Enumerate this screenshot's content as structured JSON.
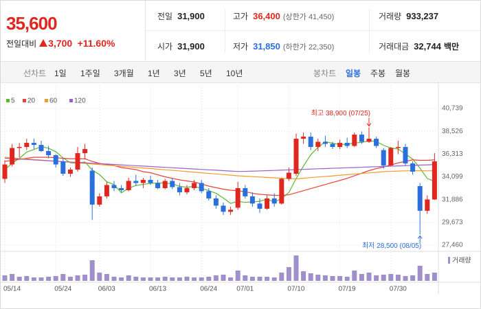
{
  "header": {
    "price": "35,600",
    "change_label": "전일대비",
    "change": "3,700",
    "change_pct": "+11.60%",
    "stats": [
      {
        "label": "전일",
        "value": "31,900"
      },
      {
        "label": "고가",
        "value": "36,400",
        "extra": "(상한가 41,450)",
        "color": "#e0271f"
      },
      {
        "label": "거래량",
        "value": "933,237"
      },
      {
        "label": "시가",
        "value": "31,900"
      },
      {
        "label": "저가",
        "value": "31,850",
        "extra": "(하한가 22,350)",
        "color": "#2a6fdb"
      },
      {
        "label": "거래대금",
        "value": "32,744",
        "unit": "백만"
      }
    ]
  },
  "toolbar": {
    "line_label": "선차트",
    "line_tabs": [
      "1일",
      "1주일",
      "3개월",
      "1년",
      "3년",
      "5년",
      "10년"
    ],
    "candle_label": "봉차트",
    "candle_tabs": [
      "일봉",
      "주봉",
      "월봉"
    ],
    "candle_active": 0
  },
  "chart_data": {
    "type": "candlestick",
    "up_color": "#e0271f",
    "down_color": "#2a6fdb",
    "volume_color": "#9f8fcb",
    "grid": true,
    "categories": [
      "05/14",
      null,
      null,
      null,
      null,
      null,
      null,
      "05/24",
      null,
      null,
      null,
      null,
      null,
      "06/03",
      null,
      null,
      null,
      null,
      null,
      null,
      "06/13",
      null,
      null,
      null,
      null,
      null,
      null,
      "06/24",
      null,
      null,
      null,
      null,
      "07/01",
      null,
      null,
      null,
      null,
      null,
      null,
      "07/10",
      null,
      null,
      null,
      null,
      null,
      null,
      "07/19",
      null,
      null,
      null,
      null,
      null,
      null,
      "07/30",
      null,
      null,
      null,
      null,
      null,
      null
    ],
    "open": [
      33900,
      35300,
      36900,
      37000,
      37400,
      37200,
      36600,
      36200,
      35600,
      34400,
      34800,
      36400,
      34700,
      31400,
      32200,
      33300,
      33000,
      32800,
      33700,
      33500,
      33800,
      33500,
      33000,
      33700,
      33100,
      32600,
      33000,
      33500,
      32700,
      32000,
      31300,
      30700,
      31100,
      33000,
      32200,
      31500,
      31000,
      32000,
      31500,
      33900,
      34400,
      37800,
      38000,
      37000,
      37500,
      37300,
      37000,
      37400,
      37100,
      38200,
      37500,
      37800,
      36700,
      35200,
      36900,
      37000,
      35400,
      33200,
      30800,
      31900
    ],
    "high": [
      35700,
      37300,
      37400,
      37800,
      37800,
      37600,
      37100,
      36300,
      35900,
      35000,
      37000,
      37300,
      35000,
      32500,
      33600,
      33700,
      33300,
      34000,
      34300,
      34000,
      34200,
      33800,
      33900,
      34000,
      33500,
      33300,
      33800,
      33800,
      33000,
      32300,
      31600,
      31200,
      33600,
      33300,
      32600,
      32000,
      32300,
      32500,
      34000,
      35000,
      38300,
      38400,
      38400,
      37800,
      38100,
      37500,
      37700,
      37900,
      38400,
      38500,
      38900,
      38000,
      36900,
      37000,
      37600,
      37300,
      35600,
      33500,
      32300,
      36400
    ],
    "low": [
      33500,
      35100,
      36000,
      36700,
      36800,
      36500,
      35900,
      35000,
      34200,
      34100,
      34600,
      35800,
      29900,
      31200,
      32000,
      32700,
      32600,
      32700,
      33200,
      33000,
      33300,
      32900,
      32900,
      32900,
      32300,
      32400,
      32800,
      32500,
      31800,
      31000,
      30400,
      30400,
      30900,
      32000,
      31200,
      30600,
      30900,
      31200,
      31400,
      33700,
      34200,
      37300,
      36700,
      36600,
      37000,
      36800,
      36800,
      36900,
      37000,
      37300,
      37400,
      36900,
      34900,
      35100,
      36300,
      35200,
      34300,
      28500,
      30500,
      31850
    ],
    "close": [
      35300,
      36900,
      37000,
      37400,
      37200,
      36600,
      36200,
      35300,
      34400,
      34800,
      36400,
      36800,
      31400,
      32200,
      33300,
      33000,
      32800,
      33700,
      33500,
      33800,
      33500,
      33000,
      33700,
      33100,
      32600,
      33000,
      33500,
      32700,
      32000,
      31300,
      30700,
      30900,
      33000,
      32200,
      31500,
      31000,
      32000,
      31500,
      33900,
      34500,
      37800,
      38000,
      37000,
      37500,
      37300,
      37000,
      37400,
      37100,
      38200,
      37500,
      37800,
      37100,
      35200,
      36900,
      37000,
      35400,
      34600,
      30800,
      31900,
      35600
    ],
    "volume": [
      624000,
      780000,
      468000,
      546000,
      390000,
      390000,
      468000,
      546000,
      780000,
      468000,
      624000,
      702000,
      2340000,
      936000,
      780000,
      468000,
      390000,
      624000,
      468000,
      390000,
      390000,
      390000,
      468000,
      390000,
      390000,
      468000,
      390000,
      390000,
      468000,
      624000,
      702000,
      390000,
      1170000,
      624000,
      468000,
      468000,
      468000,
      390000,
      936000,
      1560000,
      2886000,
      1092000,
      858000,
      702000,
      624000,
      546000,
      546000,
      468000,
      1170000,
      780000,
      936000,
      624000,
      702000,
      780000,
      702000,
      546000,
      624000,
      1716000,
      780000,
      933237
    ],
    "volume_label": "거래량",
    "series": [
      {
        "name": "5",
        "color": "#5cb82e",
        "values": [
          34800,
          35400,
          35900,
          36500,
          36760,
          37020,
          36880,
          36540,
          35940,
          35460,
          35420,
          35540,
          34760,
          34320,
          33620,
          33340,
          32540,
          33000,
          33260,
          33360,
          33460,
          33500,
          33500,
          33420,
          33180,
          33080,
          33180,
          32980,
          32760,
          32500,
          32040,
          31520,
          31720,
          31620,
          31660,
          31720,
          31940,
          31640,
          31980,
          32580,
          33940,
          35140,
          36240,
          36960,
          37520,
          37360,
          37240,
          37260,
          37400,
          37440,
          37600,
          37540,
          37160,
          36900,
          36800,
          36320,
          35820,
          34940,
          33940,
          33660
        ]
      },
      {
        "name": "20",
        "color": "#e8423a",
        "values": [
          35600,
          35700,
          35800,
          35900,
          36000,
          36000,
          36000,
          35950,
          35900,
          35850,
          35850,
          35850,
          35600,
          35400,
          35300,
          35200,
          35000,
          34900,
          34800,
          34600,
          34500,
          34300,
          34100,
          33950,
          33800,
          33700,
          33600,
          33400,
          33200,
          33050,
          32900,
          32800,
          32750,
          32650,
          32500,
          32400,
          32350,
          32300,
          32300,
          32350,
          32550,
          32750,
          32950,
          33150,
          33350,
          33550,
          33750,
          33950,
          34200,
          34450,
          34700,
          34900,
          35050,
          35250,
          35450,
          35600,
          35750,
          35700,
          35700,
          35750
        ]
      },
      {
        "name": "60",
        "color": "#f39a2b",
        "values": [
          36000,
          35950,
          35890,
          35840,
          35780,
          35730,
          35670,
          35620,
          35560,
          35510,
          35450,
          35400,
          35340,
          35290,
          35230,
          35180,
          35120,
          35070,
          35010,
          34960,
          34900,
          34840,
          34780,
          34730,
          34670,
          34610,
          34550,
          34490,
          34430,
          34380,
          34320,
          34260,
          34200,
          34160,
          34120,
          34080,
          34040,
          34000,
          33960,
          33930,
          33900,
          33960,
          34020,
          34080,
          34130,
          34190,
          34250,
          34310,
          34370,
          34420,
          34480,
          34540,
          34600,
          34630,
          34660,
          34680,
          34700,
          34690,
          34680,
          34700
        ]
      },
      {
        "name": "120",
        "color": "#9d5ec9",
        "values": [
          35900,
          35860,
          35820,
          35780,
          35740,
          35700,
          35660,
          35620,
          35580,
          35540,
          35500,
          35460,
          35420,
          35380,
          35340,
          35300,
          35260,
          35220,
          35180,
          35140,
          35100,
          35060,
          35020,
          34980,
          34940,
          34900,
          34860,
          34820,
          34780,
          34740,
          34700,
          34660,
          34620,
          34630,
          34650,
          34670,
          34700,
          34720,
          34750,
          34770,
          34800,
          34820,
          34850,
          34880,
          34900,
          34930,
          34950,
          34980,
          35000,
          35030,
          35060,
          35080,
          35110,
          35130,
          35160,
          35180,
          35210,
          35240,
          35260,
          35290
        ]
      }
    ],
    "ylim": [
      27460,
      40739
    ],
    "yticks": [
      {
        "value": 27460,
        "label": "27,460"
      },
      {
        "value": 29673,
        "label": "29,673"
      },
      {
        "value": 31886,
        "label": "31,886"
      },
      {
        "value": 34099,
        "label": "34,099"
      },
      {
        "value": 36313,
        "label": "36,313"
      },
      {
        "value": 38526,
        "label": "38,526"
      },
      {
        "value": 40739,
        "label": "40,739"
      }
    ],
    "annotations": {
      "high": "최고 38,900 (07/25)",
      "low": "최저 28,500 (08/05)"
    }
  }
}
